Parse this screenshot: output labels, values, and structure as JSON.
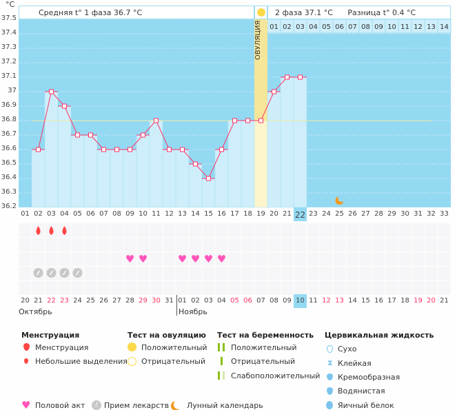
{
  "chart_data": {
    "type": "line",
    "ylabel": "°C",
    "ylim": [
      36.2,
      37.5
    ],
    "yticks": [
      "37.5",
      "37.4",
      "37.3",
      "37.2",
      "37.1",
      "37",
      "36.9",
      "36.8",
      "36.7",
      "36.6",
      "36.5",
      "36.4",
      "36.3",
      "36.2"
    ],
    "cycle_days": [
      "01",
      "02",
      "03",
      "04",
      "05",
      "06",
      "07",
      "08",
      "09",
      "10",
      "11",
      "12",
      "13",
      "14",
      "15",
      "16",
      "17",
      "18",
      "19",
      "20",
      "21",
      "22",
      "23",
      "24",
      "25",
      "26",
      "27",
      "28",
      "29",
      "30",
      "31",
      "32",
      "33"
    ],
    "temperatures": [
      null,
      36.6,
      37.0,
      36.9,
      36.7,
      36.7,
      36.6,
      36.6,
      36.6,
      36.7,
      36.8,
      36.6,
      36.6,
      36.5,
      36.4,
      36.6,
      36.8,
      36.8,
      36.8,
      37.0,
      37.1,
      37.1
    ],
    "coverline": 36.8,
    "ovulation_day": 19,
    "ovulation_label": "ОВУЛЯЦИЯ",
    "current_day": 22,
    "phase2_days": [
      "01",
      "02",
      "03",
      "04",
      "05",
      "06",
      "07",
      "08",
      "09",
      "10",
      "11",
      "12",
      "13",
      "14"
    ],
    "header": {
      "phase1": "Средняя t° 1 фаза 36.7 °C",
      "phase2": "2 фаза 37.1 °C",
      "diff": "Разница t° 0.4 °C"
    },
    "dates": [
      "20",
      "21",
      "22",
      "23",
      "24",
      "25",
      "26",
      "27",
      "28",
      "29",
      "30",
      "31",
      "01",
      "02",
      "03",
      "04",
      "05",
      "06",
      "07",
      "08",
      "09",
      "10",
      "11",
      "12",
      "13",
      "14",
      "15",
      "16",
      "17",
      "18",
      "19",
      "20",
      "21"
    ],
    "weekend_dates_index": [
      2,
      3,
      9,
      10,
      16,
      17,
      23,
      24,
      30,
      31
    ],
    "months": [
      "Октябрь",
      "Ноябрь"
    ],
    "menstruation_days": [
      2,
      3,
      4
    ],
    "intercourse_days": [
      9,
      10,
      13,
      14,
      15,
      16
    ],
    "medication_days": [
      2,
      3,
      4,
      5
    ],
    "moon_day": 25,
    "colors": {
      "bg": "#94d9f2",
      "bar": "#cdeefa",
      "line": "#ff3366",
      "ovulation": "#f5e69a",
      "weekend": "#ff3366",
      "drop": "#ff4444",
      "heart": "#ff55bb",
      "pill": "#c8c8c8",
      "moon": "#f39a1e"
    }
  },
  "legend": {
    "menstruation": {
      "title": "Менструация",
      "items": [
        "Менструация",
        "Небольшие выделения"
      ]
    },
    "ovulation_test": {
      "title": "Тест на овуляцию",
      "items": [
        "Положительный",
        "Отрицательный"
      ]
    },
    "pregnancy_test": {
      "title": "Тест на беременность",
      "items": [
        "Положительный",
        "Отрицательный",
        "Слабоположительный"
      ]
    },
    "cervical": {
      "title": "Цервикальная жидкость",
      "items": [
        "Сухо",
        "Клейкая",
        "Кремообразная",
        "Водянистая",
        "Яичный белок"
      ]
    },
    "other": [
      "Половой акт",
      "Прием лекарств",
      "Лунный календарь"
    ]
  }
}
